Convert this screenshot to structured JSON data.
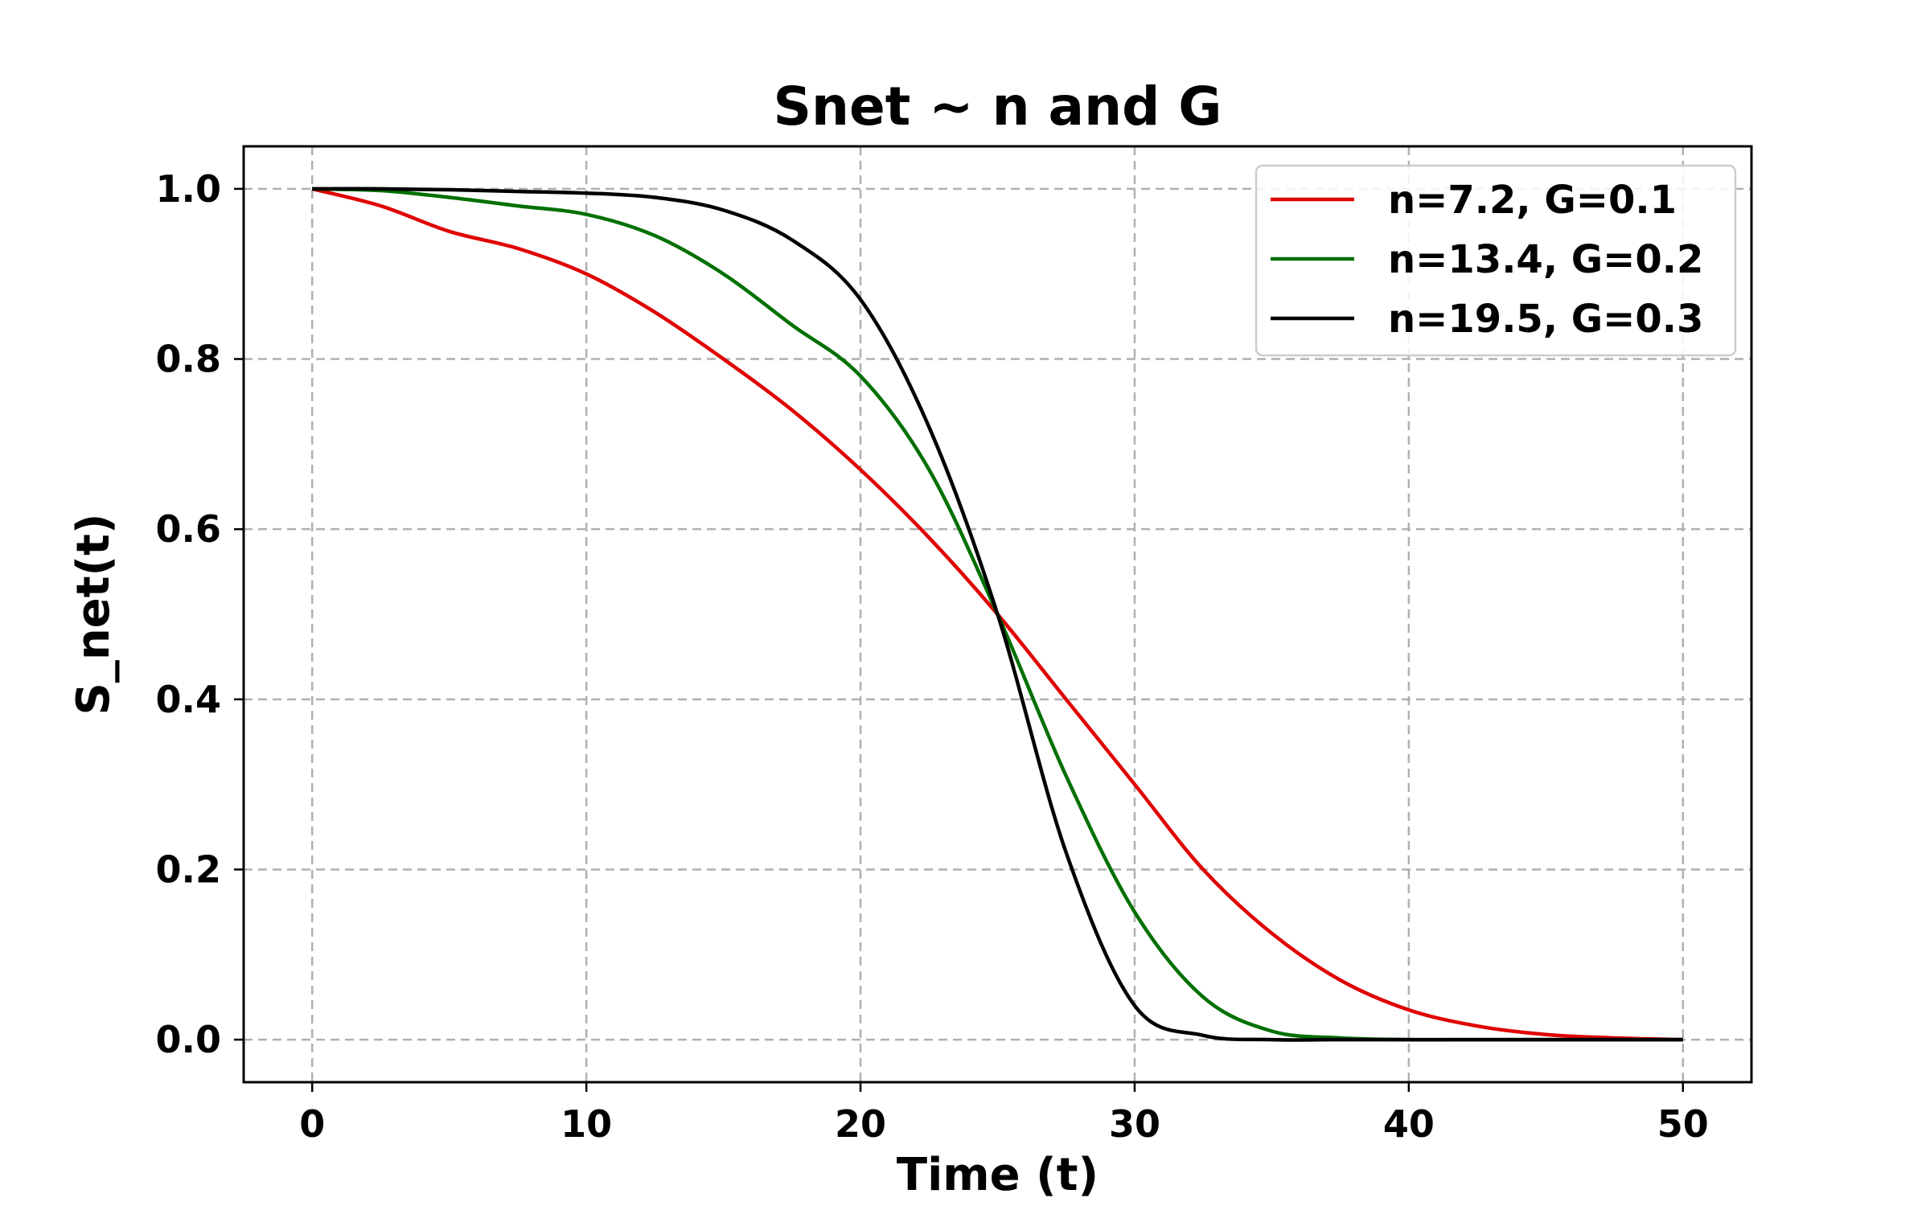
{
  "chart_data": {
    "type": "line",
    "title": "Snet ~ n and G",
    "xlabel": "Time (t)",
    "ylabel": "S_net(t)",
    "xlim": [
      -2.5,
      52.5
    ],
    "ylim": [
      -0.05,
      1.05
    ],
    "xticks": [
      0,
      10,
      20,
      30,
      40,
      50
    ],
    "xtick_labels": [
      "0",
      "10",
      "20",
      "30",
      "40",
      "50"
    ],
    "yticks": [
      0.0,
      0.2,
      0.4,
      0.6,
      0.8,
      1.0
    ],
    "ytick_labels": [
      "0.0",
      "0.2",
      "0.4",
      "0.6",
      "0.8",
      "1.0"
    ],
    "grid": true,
    "legend_position": "top-right",
    "x": [
      0,
      2.5,
      5,
      7.5,
      10,
      12.5,
      15,
      17.5,
      20,
      22.5,
      25,
      27.5,
      30,
      32.5,
      35,
      37.5,
      40,
      42.5,
      45,
      47.5,
      50
    ],
    "series": [
      {
        "name": "n=7.2, G=0.1",
        "color": "#e00000",
        "values": [
          1.0,
          0.98,
          0.95,
          0.93,
          0.9,
          0.855,
          0.8,
          0.74,
          0.67,
          0.59,
          0.5,
          0.4,
          0.3,
          0.2,
          0.125,
          0.07,
          0.035,
          0.016,
          0.006,
          0.002,
          0.0
        ]
      },
      {
        "name": "n=13.4, G=0.2",
        "color": "#007000",
        "values": [
          1.0,
          0.998,
          0.99,
          0.98,
          0.97,
          0.945,
          0.9,
          0.84,
          0.78,
          0.67,
          0.5,
          0.31,
          0.15,
          0.05,
          0.01,
          0.002,
          0.0,
          0.0,
          0.0,
          0.0,
          0.0
        ]
      },
      {
        "name": "n=19.5, G=0.3",
        "color": "#000000",
        "values": [
          1.0,
          1.0,
          0.999,
          0.997,
          0.995,
          0.99,
          0.975,
          0.94,
          0.87,
          0.72,
          0.5,
          0.22,
          0.04,
          0.005,
          0.0,
          0.0,
          0.0,
          0.0,
          0.0,
          0.0,
          0.0
        ]
      }
    ]
  }
}
